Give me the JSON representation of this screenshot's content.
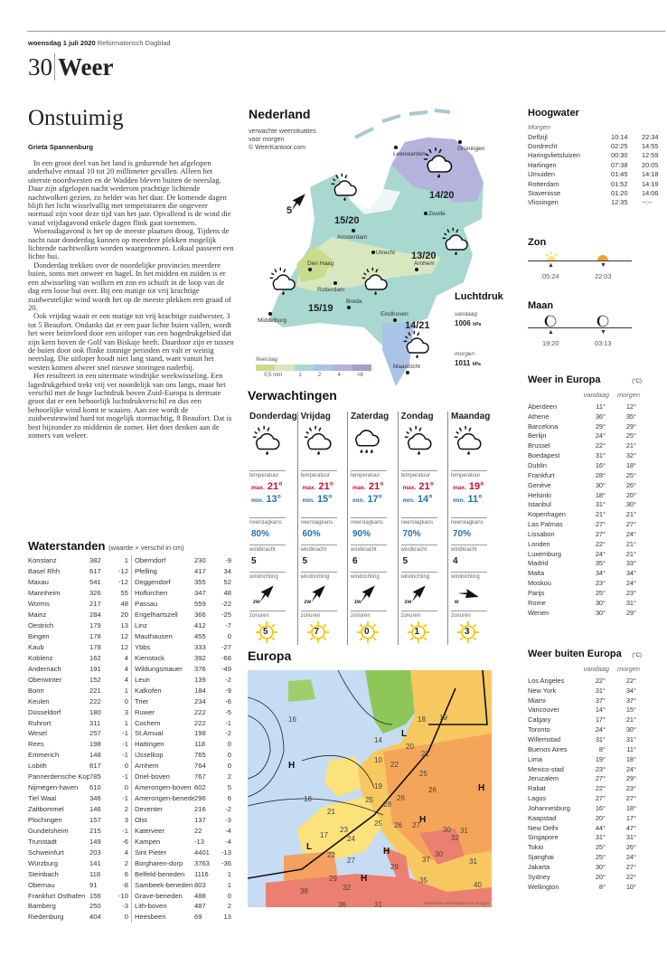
{
  "header": {
    "date": "woensdag 1 juli 2020",
    "paper": "Reformatorisch Dagblad",
    "page": "30",
    "section": "Weer"
  },
  "article": {
    "headline": "Onstuimig",
    "author": "Grieta Spannenburg",
    "paragraphs": [
      "In een groot deel van het land is gedurende het afgelopen anderhalve etmaal 10 tot 20 millimeter gevallen. Alleen het uiterste noordwesten en de Wadden bleven buiten de neerslag. Daar zijn afgelopen nacht wederom prachtige lichtende nachtwolken gezien, zo helder was het daar. De komende dagen blijft het licht wisselvallig met temperaturen die ongeveer normaal zijn voor deze tijd van het jaar. Opvallend is de wind die vanaf vrijdagavond enkele dagen flink gaat toenemen.",
      "Woensdagavond is het op de meeste plaatsen droog. Tijdens de nacht naar donderdag kunnen op meerdere plekken mogelijk lichtende nachtwolken worden waargenomen. Lokaal passeert een lichte bui.",
      "Donderdag trekken over de noordelijke provincies meerdere buien, soms met onweer en hagel. In het midden en zuiden is er een afwisseling van wolken en zon en schuift in de loop van de dag een losse bui over. Bij een matige tot vrij krachtige zuidwestelijke wind wordt het op de meeste plekken een graad of 20.",
      "Ook vrijdag waait er een matige tot vrij krachtige zuidwester, 3 tot 5 Beaufort. Ondanks dat er een paar lichte buien vallen, wordt het weer beïnvloed door een uitloper van een hogedrukgebied dat zijn kern boven de Golf van Biskaje heeft. Daardoor zijn er tussen de buien door ook flinke zonnige perioden en valt er weinig neerslag. Die uitloper houdt niet lang stand, want vanuit het westen komen alweer snel nieuwe storingen naderbij.",
      "Het resulteert in een uitermate windrijke weekwisseling. Een lagedrukgebied trekt vrij ver noordelijk van ons langs, maar het verschil met de hoge luchtdruk boven Zuid-Europa is dermate groot dat er een behoorlijk luchtdrukverschil en dus een behoorlijke wind komt te waaien. Aan zee wordt de zuidwestenwind hard tot mogelijk stormachtig, 8 Beaufort. Dat is best bijzonder zo middenin de zomer. Het doet denken aan de zomers van weleer."
    ]
  },
  "waterstanden": {
    "title": "Waterstanden",
    "subtitle": "(waarde + verschil in cm)",
    "left": [
      [
        "Konstanz",
        "382",
        "1"
      ],
      [
        "Basel Rhh",
        "617",
        "-12"
      ],
      [
        "Maxau",
        "541",
        "-12"
      ],
      [
        "Mannheim",
        "326",
        "55"
      ],
      [
        "Worms",
        "217",
        "48"
      ],
      [
        "Mainz",
        "284",
        "20"
      ],
      [
        "Oestrich",
        "179",
        "13"
      ],
      [
        "Bingen",
        "178",
        "12"
      ],
      [
        "Kaub",
        "178",
        "12"
      ],
      [
        "Koblenz",
        "162",
        "4"
      ],
      [
        "Andernach",
        "191",
        "4"
      ],
      [
        "Oberwinter",
        "152",
        "4"
      ],
      [
        "Bonn",
        "221",
        "1"
      ],
      [
        "Keulen",
        "222",
        "0"
      ],
      [
        "Düsseldorf",
        "180",
        "3"
      ],
      [
        "Ruhrort",
        "311",
        "1"
      ],
      [
        "Wesel",
        "257",
        "-1"
      ],
      [
        "Rees",
        "198",
        "-1"
      ],
      [
        "Emmerich",
        "148",
        "-1"
      ],
      [
        "Lobith",
        "817",
        "0"
      ],
      [
        "Pannerdensche Kop",
        "785",
        "-1"
      ],
      [
        "Nijmegen-haven",
        "610",
        "0"
      ],
      [
        "Tiel Waal",
        "346",
        "-1"
      ],
      [
        "Zaltbommel",
        "146",
        "2"
      ],
      [
        "Plochingen",
        "157",
        "3"
      ],
      [
        "Gundelsheim",
        "215",
        "-1"
      ],
      [
        "Trunstadt",
        "149",
        "-6"
      ],
      [
        "Schweinfurt",
        "203",
        "4"
      ],
      [
        "Würzburg",
        "141",
        "2"
      ],
      [
        "Steinbach",
        "118",
        "6"
      ],
      [
        "Obernau",
        "91",
        "-8"
      ],
      [
        "Frankfurt Osthafen",
        "156",
        "-10"
      ],
      [
        "Bamberg",
        "250",
        "-3"
      ],
      [
        "Riedenburg",
        "404",
        "0"
      ]
    ],
    "right": [
      [
        "Oberndorf",
        "230",
        "-9"
      ],
      [
        "Pfelling",
        "417",
        "34"
      ],
      [
        "Deggendorf",
        "355",
        "52"
      ],
      [
        "Hofkirchen",
        "347",
        "48"
      ],
      [
        "Passau",
        "559",
        "-22"
      ],
      [
        "Engelhartszell",
        "366",
        "-25"
      ],
      [
        "Linz",
        "412",
        "-7"
      ],
      [
        "Mauthausen",
        "455",
        "0"
      ],
      [
        "Ybbs",
        "333",
        "-27"
      ],
      [
        "Kienstock",
        "392",
        "-68"
      ],
      [
        "Wildungsmauer",
        "376",
        "-49"
      ],
      [
        "Leun",
        "139",
        "-2"
      ],
      [
        "Kalkofen",
        "184",
        "-9"
      ],
      [
        "Trier",
        "234",
        "-6"
      ],
      [
        "Ruwer",
        "222",
        "-5"
      ],
      [
        "Cochem",
        "222",
        "-1"
      ],
      [
        "St.Arnual",
        "198",
        "-2"
      ],
      [
        "Hattingen",
        "118",
        "0"
      ],
      [
        "IJsselkop",
        "765",
        "0"
      ],
      [
        "Arnhem",
        "764",
        "0"
      ],
      [
        "Driel-boven",
        "767",
        "2"
      ],
      [
        "Amerongen-boven",
        "602",
        "5"
      ],
      [
        "Amerongen-beneden",
        "296",
        "6"
      ],
      [
        "Deventer",
        "216",
        "-2"
      ],
      [
        "Olst",
        "137",
        "-3"
      ],
      [
        "Katerveer",
        "22",
        "-4"
      ],
      [
        "Kampen",
        "-13",
        "-4"
      ],
      [
        "Sint Pieter",
        "4401",
        "-13"
      ],
      [
        "Borgharen-dorp",
        "3763",
        "-36"
      ],
      [
        "Belfeld-beneden",
        "1116",
        "1"
      ],
      [
        "Sambeek-beneden",
        "803",
        "1"
      ],
      [
        "Grave-beneden",
        "488",
        "0"
      ],
      [
        "Lith-boven",
        "487",
        "2"
      ],
      [
        "Heesbeen",
        "69",
        "13"
      ]
    ]
  },
  "nederland": {
    "title": "Nederland",
    "subtitle1": "verwachte weersituaties",
    "subtitle2": "voor morgen",
    "credit": "© WeerKantoor.com",
    "cities": [
      "Leeuwarden",
      "Groningen",
      "Zwolle",
      "Amsterdam",
      "Utrecht",
      "Den Haag",
      "Rotterdam",
      "Arnhem",
      "Breda",
      "Eindhoven",
      "Middelburg",
      "Maastricht"
    ],
    "temps": [
      "14/20",
      "15/20",
      "13/20",
      "15/19",
      "14/21"
    ],
    "wind_force": "5",
    "legend": {
      "title": "Neerslag",
      "ticks": [
        "0,5 mm",
        "1",
        "2",
        "4",
        ">8"
      ],
      "colors": [
        "#c8dc8c",
        "#d7e8c0",
        "#a8d8d0",
        "#a9c4e6",
        "#b3b3dc",
        "#a79bd0"
      ]
    },
    "luchtdruk": {
      "title": "Luchtdruk",
      "today_label": "vandaag",
      "today": "1006",
      "tomorrow_label": "morgen",
      "tomorrow": "1011",
      "unit": "hPa"
    }
  },
  "verwachtingen": {
    "title": "Verwachtingen",
    "labels": {
      "temp": "temperatuur",
      "max": "max.",
      "min": "min.",
      "rain": "neerslagkans",
      "wind": "windkracht",
      "dir": "windrichting",
      "sun": "zonuren"
    },
    "days": [
      {
        "day": "Donderdag",
        "icon": "sun-cloud-rain-icon",
        "max": "21°",
        "min": "13°",
        "rain": "80%",
        "wind": "5",
        "dir": "zw",
        "sun": "5"
      },
      {
        "day": "Vrijdag",
        "icon": "sun-cloud-rain-icon",
        "max": "21°",
        "min": "15°",
        "rain": "60%",
        "wind": "5",
        "dir": "zw",
        "sun": "7"
      },
      {
        "day": "Zaterdag",
        "icon": "cloud-heavy-rain-icon",
        "max": "21°",
        "min": "17°",
        "rain": "90%",
        "wind": "6",
        "dir": "zw",
        "sun": "0"
      },
      {
        "day": "Zondag",
        "icon": "sun-cloud-rain-icon",
        "max": "21°",
        "min": "14°",
        "rain": "70%",
        "wind": "5",
        "dir": "zw",
        "sun": "1"
      },
      {
        "day": "Maandag",
        "icon": "sun-cloud-rain-icon",
        "max": "19°",
        "min": "11°",
        "rain": "70%",
        "wind": "4",
        "dir": "w",
        "sun": "3"
      }
    ]
  },
  "europa_map": {
    "title": "Europa",
    "caption": "verwachte weersituatie voor morgen",
    "temps": [
      "16",
      "18",
      "19",
      "14",
      "10",
      "22",
      "20",
      "21",
      "25",
      "26",
      "18",
      "21",
      "19",
      "25",
      "28",
      "26",
      "23",
      "25",
      "26",
      "27",
      "17",
      "24",
      "22",
      "27",
      "30",
      "31",
      "32",
      "30",
      "31",
      "37",
      "29",
      "38",
      "32",
      "29",
      "35",
      "30",
      "40",
      "36",
      "31",
      "41",
      "38",
      "23"
    ]
  },
  "hoogwater": {
    "title": "Hoogwater",
    "sub": "Morgen",
    "rows": [
      [
        "Delfzijl",
        "10:14",
        "22:34"
      ],
      [
        "Dordrecht",
        "02:25",
        "14:55"
      ],
      [
        "Haringvlietsluizen",
        "00:30",
        "12:59"
      ],
      [
        "Harlingen",
        "07:38",
        "20:05"
      ],
      [
        "IJmuiden",
        "01:45",
        "14:18"
      ],
      [
        "Rotterdam",
        "01:52",
        "14:19"
      ],
      [
        "Stavenisse",
        "01:20",
        "14:06"
      ],
      [
        "Vlissingen",
        "12:35",
        "--:--"
      ]
    ]
  },
  "zon": {
    "title": "Zon",
    "rise": "05:24",
    "set": "22:03"
  },
  "maan": {
    "title": "Maan",
    "rise": "19:20",
    "set": "03:13"
  },
  "europa": {
    "title": "Weer in Europa",
    "unit": "(°C)",
    "col1": "vandaag",
    "col2": "morgen",
    "rows": [
      [
        "Aberdeen",
        "11°",
        "12°"
      ],
      [
        "Athene",
        "36°",
        "35°"
      ],
      [
        "Barcelona",
        "29°",
        "29°"
      ],
      [
        "Berlijn",
        "24°",
        "25°"
      ],
      [
        "Brussel",
        "22°",
        "21°"
      ],
      [
        "Boedapest",
        "31°",
        "32°"
      ],
      [
        "Dublin",
        "16°",
        "18°"
      ],
      [
        "Frankfurt",
        "28°",
        "25°"
      ],
      [
        "Genève",
        "30°",
        "26°"
      ],
      [
        "Helsinki",
        "18°",
        "20°"
      ],
      [
        "Istanbul",
        "31°",
        "30°"
      ],
      [
        "Kopenhagen",
        "21°",
        "21°"
      ],
      [
        "Las Palmas",
        "27°",
        "27°"
      ],
      [
        "Lissabon",
        "27°",
        "24°"
      ],
      [
        "Londen",
        "22°",
        "21°"
      ],
      [
        "Luxemburg",
        "24°",
        "21°"
      ],
      [
        "Madrid",
        "35°",
        "33°"
      ],
      [
        "Malta",
        "34°",
        "34°"
      ],
      [
        "Moskou",
        "23°",
        "24°"
      ],
      [
        "Parijs",
        "25°",
        "23°"
      ],
      [
        "Rome",
        "30°",
        "31°"
      ],
      [
        "Wenen",
        "30°",
        "29°"
      ]
    ]
  },
  "buiten": {
    "title": "Weer buiten Europa",
    "unit": "(°C)",
    "col1": "vandaag",
    "col2": "morgen",
    "rows": [
      [
        "Los Angeles",
        "22°",
        "22°"
      ],
      [
        "New York",
        "31°",
        "34°"
      ],
      [
        "Miami",
        "37°",
        "37°"
      ],
      [
        "Vancouver",
        "14°",
        "15°"
      ],
      [
        "Calgary",
        "17°",
        "21°"
      ],
      [
        "Toronto",
        "24°",
        "30°"
      ],
      [
        "Willemstad",
        "31°",
        "31°"
      ],
      [
        "Buenos Aires",
        "8°",
        "11°"
      ],
      [
        "Lima",
        "19°",
        "18°"
      ],
      [
        "Mexico-stad",
        "23°",
        "24°"
      ],
      [
        "Jeruzalem",
        "27°",
        "29°"
      ],
      [
        "Rabat",
        "22°",
        "23°"
      ],
      [
        "Lagos",
        "27°",
        "27°"
      ],
      [
        "Johannesburg",
        "16°",
        "18°"
      ],
      [
        "Kaapstad",
        "20°",
        "17°"
      ],
      [
        "New Delhi",
        "44°",
        "47°"
      ],
      [
        "Singapore",
        "31°",
        "31°"
      ],
      [
        "Tokio",
        "25°",
        "26°"
      ],
      [
        "Sjanghai",
        "25°",
        "24°"
      ],
      [
        "Jakarta",
        "30°",
        "27°"
      ],
      [
        "Sydney",
        "20°",
        "22°"
      ],
      [
        "Wellington",
        "8°",
        "10°"
      ]
    ]
  }
}
